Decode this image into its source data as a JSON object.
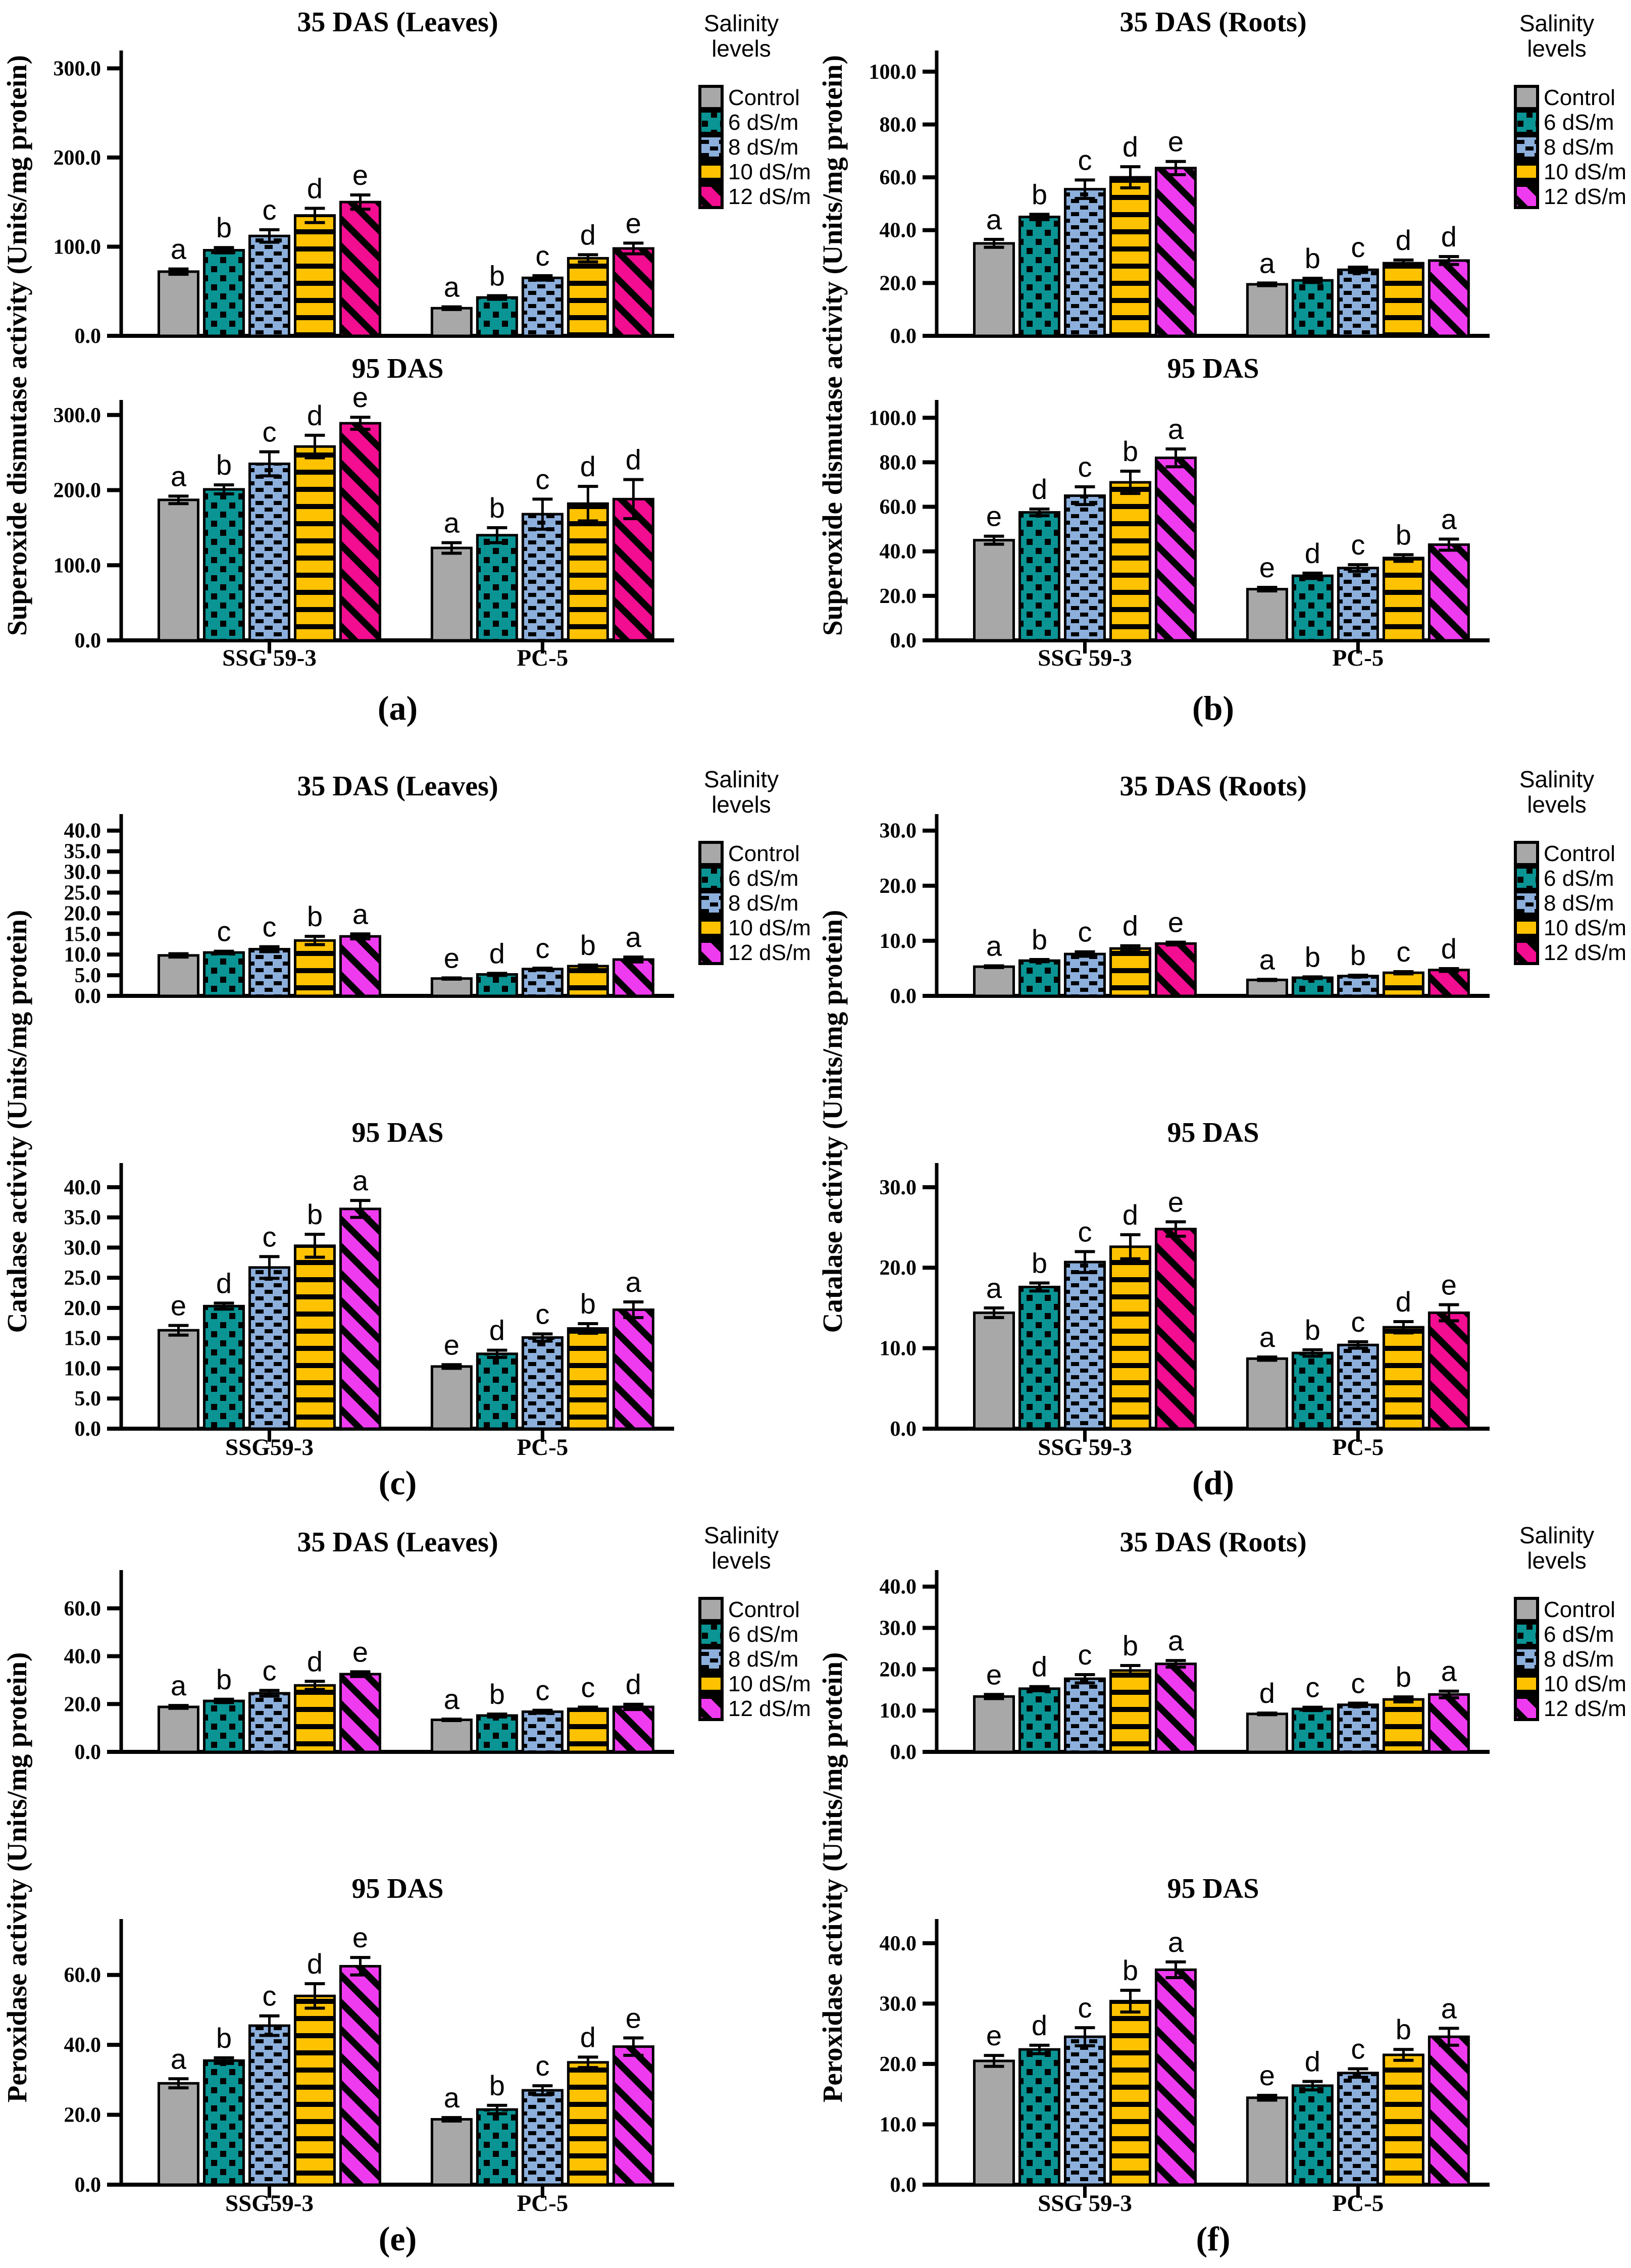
{
  "colors": {
    "control": "#A8A8A8",
    "s6": "#0A9494",
    "s8": "#8CAFDC",
    "s10": "#FFC200",
    "s12_pink": "#F30D90",
    "s12_magenta": "#EF3BEF",
    "outline": "#000000"
  },
  "legend": {
    "title_line1": "Salinity",
    "title_line2": "levels",
    "entries": [
      "Control",
      "6 dS/m",
      "8 dS/m",
      "10 dS/m",
      "12 dS/m"
    ]
  },
  "chart_data": {
    "type": "bar",
    "note": "Grouped bar charts with SE error bars and significance letters; 6 panels (a-f), each with two subplots (35 DAS and 95 DAS).",
    "panels": [
      {
        "key": "a",
        "label": "(a)",
        "row": 1,
        "variant": "pink",
        "ylabel": "Superoxide dismutase activity (Units/mg protein)",
        "groups": [
          "SSG 59-3",
          "PC-5"
        ],
        "charts": [
          {
            "title": "35 DAS  (Leaves)",
            "ymax": 300,
            "ystep": 100,
            "ytop": 320,
            "series": [
              {
                "values": [
                  72,
                  96,
                  112,
                  135,
                  150
                ],
                "errors": [
                  3,
                  3,
                  7,
                  8,
                  8
                ],
                "letters": [
                  "a",
                  "b",
                  "c",
                  "d",
                  "e"
                ]
              },
              {
                "values": [
                  31,
                  43,
                  65,
                  87,
                  98
                ],
                "errors": [
                  1.5,
                  2,
                  2.5,
                  4,
                  6
                ],
                "letters": [
                  "a",
                  "b",
                  "c",
                  "d",
                  "e"
                ]
              }
            ]
          },
          {
            "title": "95 DAS",
            "ymax": 300,
            "ystep": 100,
            "ytop": 320,
            "series": [
              {
                "values": [
                  187,
                  201,
                  235,
                  258,
                  289
                ],
                "errors": [
                  5,
                  6,
                  16,
                  15,
                  8
                ],
                "letters": [
                  "a",
                  "b",
                  "c",
                  "d",
                  "e"
                ]
              },
              {
                "values": [
                  123,
                  140,
                  168,
                  182,
                  188
                ],
                "errors": [
                  7,
                  10,
                  20,
                  23,
                  26
                ],
                "letters": [
                  "a",
                  "b",
                  "c",
                  "d",
                  "d"
                ]
              }
            ]
          }
        ]
      },
      {
        "key": "b",
        "label": "(b)",
        "row": 1,
        "variant": "magenta",
        "ylabel": "Superoxide dismutase activity (Units/mg protein)",
        "groups": [
          "SSG 59-3",
          "PC-5"
        ],
        "charts": [
          {
            "title": "35 DAS (Roots)",
            "ymax": 100,
            "ystep": 20,
            "ytop": 108,
            "series": [
              {
                "values": [
                  35,
                  45,
                  55.5,
                  60,
                  63.5
                ],
                "errors": [
                  1.5,
                  1,
                  3.5,
                  4,
                  2.5
                ],
                "letters": [
                  "a",
                  "b",
                  "c",
                  "d",
                  "e"
                ]
              },
              {
                "values": [
                  19.5,
                  21,
                  25,
                  27.5,
                  28.5
                ],
                "errors": [
                  0.5,
                  0.8,
                  1,
                  1.2,
                  1.5
                ],
                "letters": [
                  "a",
                  "b",
                  "c",
                  "d",
                  "d"
                ]
              }
            ]
          },
          {
            "title": "95 DAS",
            "ymax": 100,
            "ystep": 20,
            "ytop": 108,
            "series": [
              {
                "values": [
                  45,
                  57.5,
                  65,
                  71,
                  82
                ],
                "errors": [
                  1.8,
                  1.5,
                  4,
                  5,
                  4
                ],
                "letters": [
                  "e",
                  "d",
                  "c",
                  "b",
                  "a"
                ]
              },
              {
                "values": [
                  23,
                  29,
                  32.5,
                  37,
                  43
                ],
                "errors": [
                  0.8,
                  1.2,
                  1.5,
                  1.5,
                  2.5
                ],
                "letters": [
                  "e",
                  "d",
                  "c",
                  "b",
                  "a"
                ]
              }
            ]
          }
        ]
      },
      {
        "key": "c",
        "label": "(c)",
        "row": 2,
        "variant": "magenta",
        "ylabel": "Catalase activity (Units/mg protein)",
        "groups": [
          "SSG59-3",
          "PC-5"
        ],
        "charts": [
          {
            "title": "35 DAS (Leaves)",
            "ymax": 40,
            "ystep": 5,
            "ytop": 44,
            "series": [
              {
                "values": [
                  9.8,
                  10.5,
                  11.3,
                  13.4,
                  14.4
                ],
                "errors": [
                  0.4,
                  0.3,
                  0.6,
                  1.0,
                  0.6
                ],
                "letters": [
                  "",
                  "c",
                  "c",
                  "b",
                  "a"
                ]
              },
              {
                "values": [
                  4.2,
                  5.2,
                  6.5,
                  7.2,
                  8.8
                ],
                "errors": [
                  0.15,
                  0.25,
                  0.2,
                  0.25,
                  0.6
                ],
                "letters": [
                  "e",
                  "d",
                  "c",
                  "b",
                  "a"
                ]
              }
            ]
          },
          {
            "title": "95 DAS",
            "ymax": 40,
            "ystep": 5,
            "ytop": 44,
            "series": [
              {
                "values": [
                  16.3,
                  20.3,
                  26.7,
                  30.3,
                  36.4
                ],
                "errors": [
                  0.8,
                  0.5,
                  1.8,
                  1.9,
                  1.4
                ],
                "letters": [
                  "e",
                  "d",
                  "c",
                  "b",
                  "a"
                ]
              },
              {
                "values": [
                  10.3,
                  12.4,
                  15.1,
                  16.6,
                  19.7
                ],
                "errors": [
                  0.3,
                  0.6,
                  0.6,
                  0.8,
                  1.3
                ],
                "letters": [
                  "e",
                  "d",
                  "c",
                  "b",
                  "a"
                ]
              }
            ]
          }
        ]
      },
      {
        "key": "d",
        "label": "(d)",
        "row": 2,
        "variant": "pink",
        "ylabel": "Catalase activity (Units/mg protein)",
        "groups": [
          "SSG 59-3",
          "PC-5"
        ],
        "charts": [
          {
            "title": "35 DAS (Roots)",
            "ymax": 30,
            "ystep": 10,
            "ytop": 33,
            "series": [
              {
                "values": [
                  5.3,
                  6.4,
                  7.6,
                  8.6,
                  9.5
                ],
                "errors": [
                  0.15,
                  0.2,
                  0.4,
                  0.5,
                  0.25
                ],
                "letters": [
                  "a",
                  "b",
                  "c",
                  "d",
                  "e"
                ]
              },
              {
                "values": [
                  2.9,
                  3.3,
                  3.6,
                  4.2,
                  4.7
                ],
                "errors": [
                  0.1,
                  0.15,
                  0.15,
                  0.2,
                  0.25
                ],
                "letters": [
                  "a",
                  "b",
                  "b",
                  "c",
                  "d"
                ]
              }
            ]
          },
          {
            "title": "95 DAS",
            "ymax": 30,
            "ystep": 10,
            "ytop": 33,
            "series": [
              {
                "values": [
                  14.4,
                  17.6,
                  20.7,
                  22.6,
                  24.8
                ],
                "errors": [
                  0.6,
                  0.5,
                  1.3,
                  1.5,
                  0.9
                ],
                "letters": [
                  "a",
                  "b",
                  "c",
                  "d",
                  "e"
                ]
              },
              {
                "values": [
                  8.7,
                  9.4,
                  10.4,
                  12.6,
                  14.4
                ],
                "errors": [
                  0.2,
                  0.4,
                  0.4,
                  0.7,
                  1.0
                ],
                "letters": [
                  "a",
                  "b",
                  "c",
                  "d",
                  "e"
                ]
              }
            ]
          }
        ]
      },
      {
        "key": "e",
        "label": "(e)",
        "row": 3,
        "variant": "magenta",
        "ylabel": "Peroxidase activity (Units/mg protein)",
        "groups": [
          "SSG59-3",
          "PC-5"
        ],
        "charts": [
          {
            "title": "35 DAS (Leaves)",
            "ymax": 60,
            "ystep": 20,
            "ytop": 76,
            "series": [
              {
                "values": [
                  18.8,
                  21.3,
                  24.5,
                  27.8,
                  32.5
                ],
                "errors": [
                  0.6,
                  0.7,
                  1.2,
                  1.7,
                  1.0
                ],
                "letters": [
                  "a",
                  "b",
                  "c",
                  "d",
                  "e"
                ]
              },
              {
                "values": [
                  13.4,
                  15.2,
                  16.8,
                  18.0,
                  18.8
                ],
                "errors": [
                  0.3,
                  0.6,
                  0.6,
                  0.7,
                  1.1
                ],
                "letters": [
                  "a",
                  "b",
                  "c",
                  "c",
                  "d"
                ]
              }
            ]
          },
          {
            "title": "95 DAS",
            "ymax": 60,
            "ystep": 20,
            "ytop": 76,
            "series": [
              {
                "values": [
                  29,
                  35.5,
                  45.5,
                  54,
                  62.5
                ],
                "errors": [
                  1.3,
                  0.8,
                  2.8,
                  3.5,
                  2.5
                ],
                "letters": [
                  "a",
                  "b",
                  "c",
                  "d",
                  "e"
                ]
              },
              {
                "values": [
                  18.7,
                  21.5,
                  27,
                  35,
                  39.5
                ],
                "errors": [
                  0.5,
                  1.2,
                  1.3,
                  1.5,
                  2.5
                ],
                "letters": [
                  "a",
                  "b",
                  "c",
                  "d",
                  "e"
                ]
              }
            ]
          }
        ]
      },
      {
        "key": "f",
        "label": "(f)",
        "row": 3,
        "variant": "magenta",
        "ylabel": "Peroxidase activity (Units/mg protein)",
        "groups": [
          "SSG 59-3",
          "PC-5"
        ],
        "charts": [
          {
            "title": "35 DAS (Roots)",
            "ymax": 40,
            "ystep": 10,
            "ytop": 44,
            "series": [
              {
                "values": [
                  13.4,
                  15.3,
                  17.7,
                  19.7,
                  21.3
                ],
                "errors": [
                  0.5,
                  0.5,
                  1.0,
                  1.2,
                  0.8
                ],
                "letters": [
                  "e",
                  "d",
                  "c",
                  "b",
                  "a"
                ]
              },
              {
                "values": [
                  9.2,
                  10.4,
                  11.4,
                  12.7,
                  13.9
                ],
                "errors": [
                  0.2,
                  0.4,
                  0.4,
                  0.6,
                  0.8
                ],
                "letters": [
                  "d",
                  "c",
                  "c",
                  "b",
                  "a"
                ]
              }
            ]
          },
          {
            "title": "95 DAS",
            "ymax": 40,
            "ystep": 10,
            "ytop": 44,
            "series": [
              {
                "values": [
                  20.5,
                  22.4,
                  24.5,
                  30.4,
                  35.6
                ],
                "errors": [
                  0.9,
                  0.7,
                  1.5,
                  1.8,
                  1.3
                ],
                "letters": [
                  "e",
                  "d",
                  "c",
                  "b",
                  "a"
                ]
              },
              {
                "values": [
                  14.4,
                  16.4,
                  18.5,
                  21.5,
                  24.5
                ],
                "errors": [
                  0.4,
                  0.7,
                  0.7,
                  0.9,
                  1.4
                ],
                "letters": [
                  "e",
                  "d",
                  "c",
                  "b",
                  "a"
                ]
              }
            ]
          }
        ]
      }
    ]
  }
}
